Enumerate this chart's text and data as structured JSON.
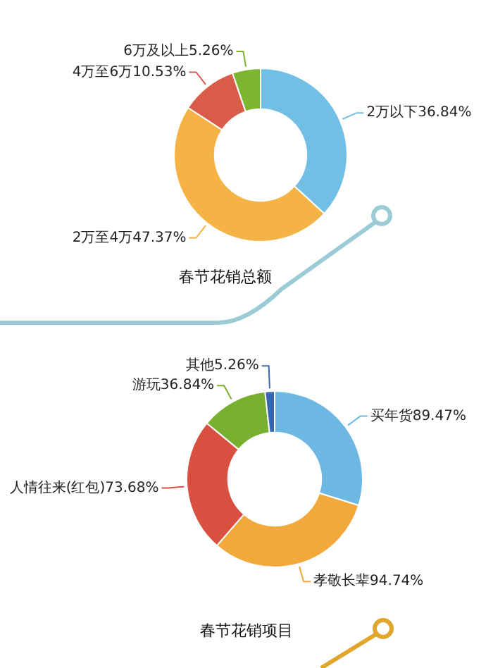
{
  "chart_data": [
    {
      "type": "donut",
      "title": "春节花销总额",
      "categories": [
        "2万以下",
        "2万至4万",
        "4万至6万",
        "6万及以上"
      ],
      "values": [
        36.84,
        47.37,
        10.53,
        5.26
      ],
      "colors": [
        "#72bfe6",
        "#f5b346",
        "#d95c4b",
        "#7cb630"
      ],
      "value_labels": [
        "36.84%",
        "47.37%",
        "10.53%",
        "5.26%"
      ]
    },
    {
      "type": "donut",
      "title": "春节花销项目",
      "categories": [
        "买年货",
        "孝敬长辈",
        "人情往来(红包)",
        "游玩",
        "其他"
      ],
      "values": [
        89.47,
        94.74,
        73.68,
        36.84,
        5.26
      ],
      "colors": [
        "#6db8e3",
        "#f2a93b",
        "#d94f42",
        "#76b02e",
        "#3a66b0"
      ],
      "value_labels": [
        "89.47%",
        "94.74%",
        "73.68%",
        "36.84%",
        "5.26%"
      ]
    }
  ]
}
